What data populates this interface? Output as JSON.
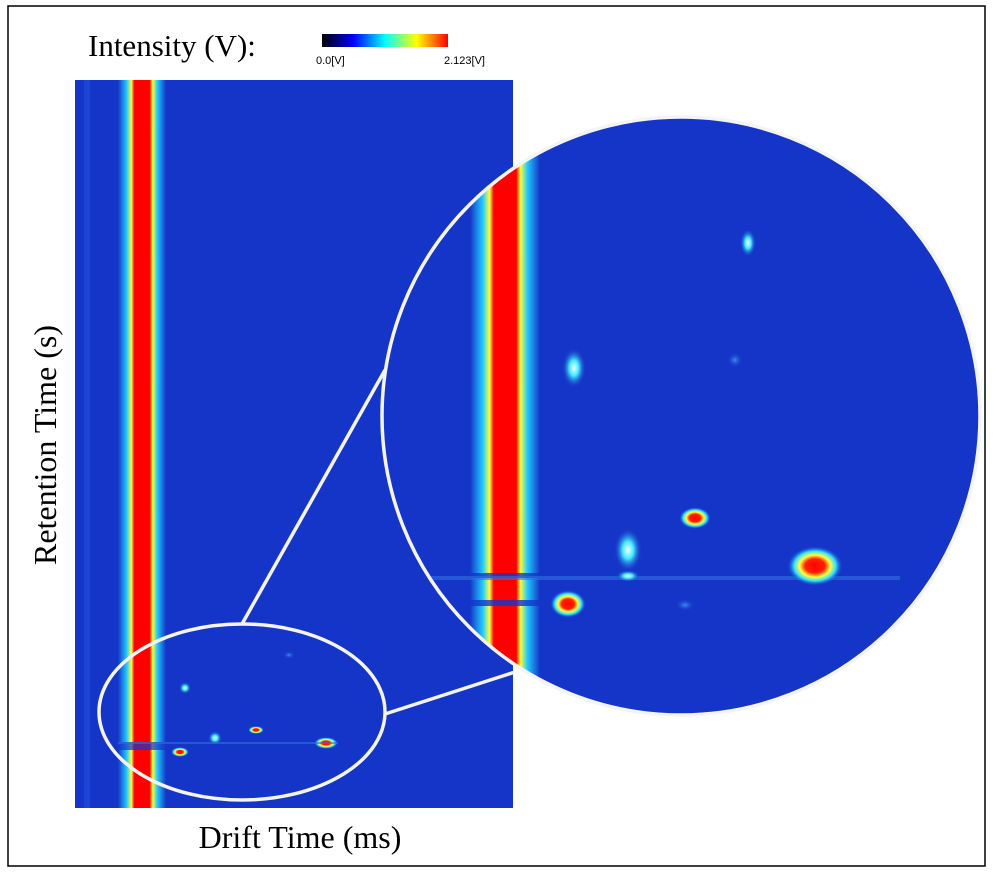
{
  "colorbar": {
    "title": "Intensity (V):",
    "min_label": "0.0[V]",
    "max_label": "2.123[V]"
  },
  "axes": {
    "x_label": "Drift Time (ms)",
    "y_label": "Retention Time (s)"
  }
}
